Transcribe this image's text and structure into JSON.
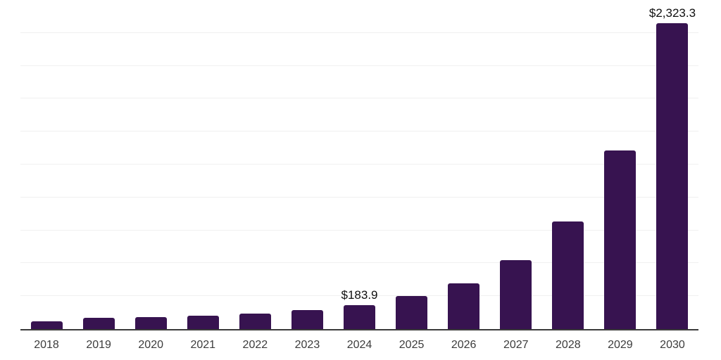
{
  "chart_data": {
    "type": "bar",
    "title": "",
    "xlabel": "",
    "ylabel": "",
    "categories": [
      "2018",
      "2019",
      "2020",
      "2021",
      "2022",
      "2023",
      "2024",
      "2025",
      "2026",
      "2027",
      "2028",
      "2029",
      "2030"
    ],
    "values": [
      61,
      85,
      90,
      104,
      117,
      146,
      183.9,
      250,
      349,
      521,
      820,
      1355,
      2323.3
    ],
    "value_labels": [
      "",
      "",
      "",
      "",
      "",
      "",
      "$183.9",
      "",
      "",
      "",
      "",
      "",
      "$2,323.3"
    ],
    "ylim": [
      0,
      2500
    ],
    "gridline_step": 250,
    "grid": true,
    "legend": "none",
    "y_axis_labels_visible": false,
    "colors": {
      "bar": "#371350",
      "gridline": "#f0f0f0",
      "axis_line": "#3a3a3a",
      "tick_label": "#3c3c3c",
      "value_label": "#0f0f0f",
      "background": "#ffffff"
    }
  }
}
